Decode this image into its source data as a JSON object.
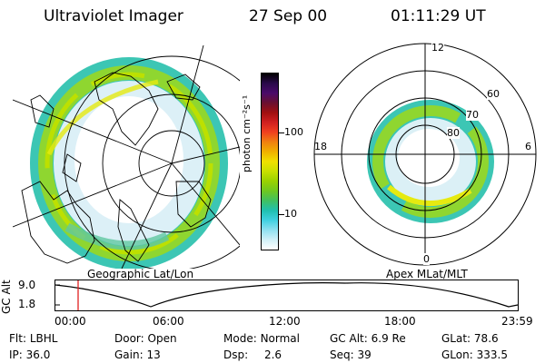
{
  "header": {
    "title": "Ultraviolet Imager",
    "date": "27 Sep 00",
    "time": "01:11:29 UT"
  },
  "left_panel": {
    "caption": "Geographic Lat/Lon"
  },
  "colorbar": {
    "unit_label": "photon cm⁻²s⁻¹",
    "scale": "log",
    "ticks": [
      "100",
      "10"
    ],
    "colors": [
      "#000000",
      "#2a0a4a",
      "#4a0a6a",
      "#6a1030",
      "#a01010",
      "#d02020",
      "#f04020",
      "#f08010",
      "#f0b000",
      "#f0e000",
      "#c8e000",
      "#9ad200",
      "#6ec820",
      "#40c060",
      "#20c0b0",
      "#40d0e0",
      "#90e0f0",
      "#d0f0f8",
      "#ffffff"
    ]
  },
  "right_panel": {
    "caption": "Apex MLat/MLT",
    "mlt_labels": {
      "top": "12",
      "bottom": "0",
      "left": "18",
      "right": "6"
    },
    "lat_labels": [
      "60",
      "70",
      "80"
    ]
  },
  "altitude_plot": {
    "ylabel": "GC Alt",
    "yticks": [
      "9.0",
      "1.8"
    ],
    "xticks": [
      "00:00",
      "06:00",
      "12:00",
      "18:00",
      "23:59"
    ],
    "marker_time": "01:11:29"
  },
  "status": {
    "flt_label": "Flt:",
    "flt_value": "LBHL",
    "ip_label": "IP:",
    "ip_value": "36.0",
    "door_label": "Door:",
    "door_value": "Open",
    "gain_label": "Gain:",
    "gain_value": "13",
    "mode_label": "Mode:",
    "mode_value": "Normal",
    "dsp_label": "Dsp:",
    "dsp_value": "2.6",
    "gcalt_label": "GC Alt:",
    "gcalt_value": "6.9 Re",
    "seq_label": "Seq:",
    "seq_value": "39",
    "glat_label": "GLat:",
    "glat_value": "78.6",
    "glon_label": "GLon:",
    "glon_value": "333.5"
  }
}
